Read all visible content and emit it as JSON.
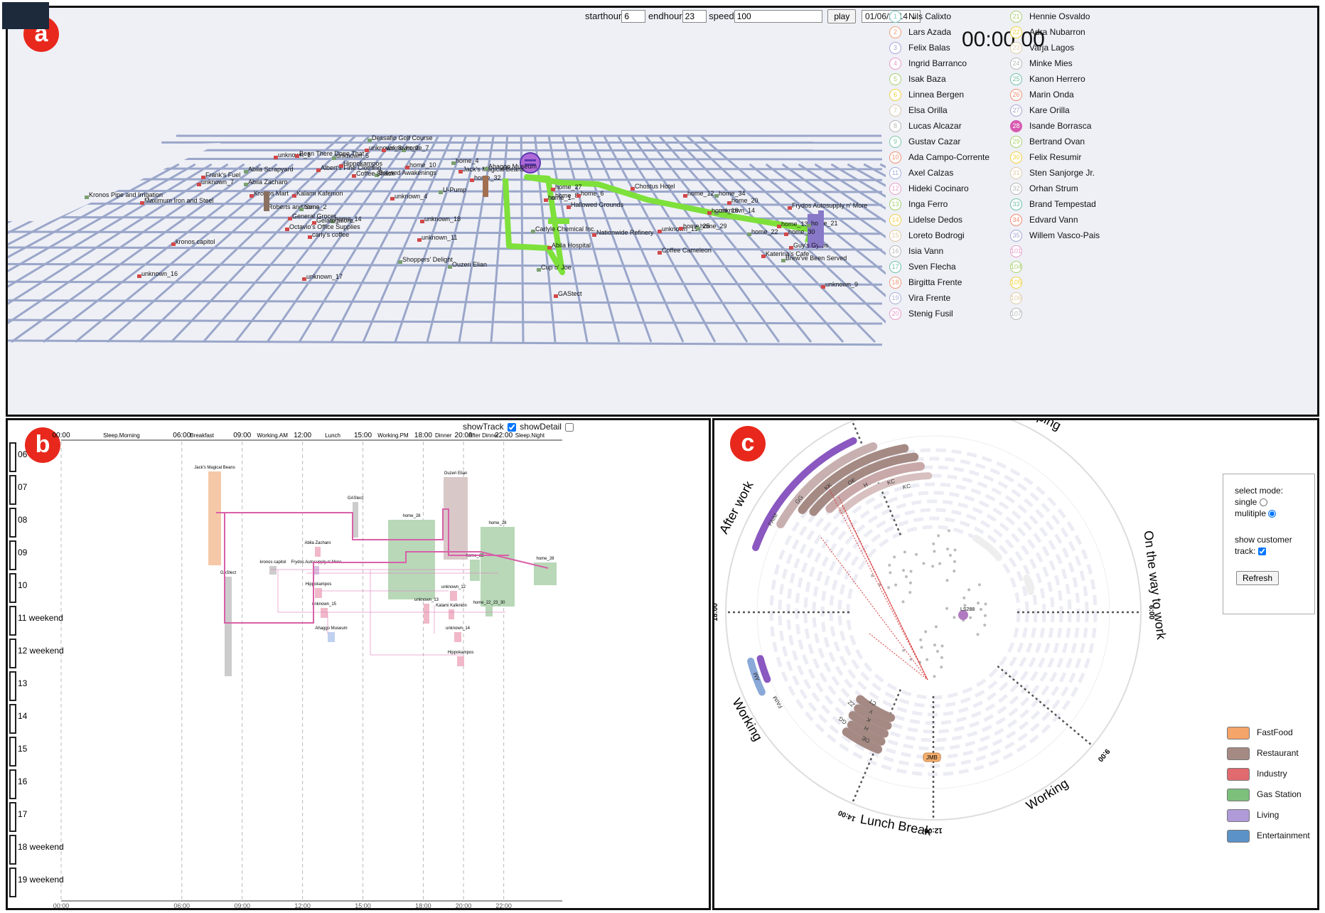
{
  "panel_a": {
    "badge": "a",
    "controls": {
      "starthour_label": "starthour",
      "starthour_value": "6",
      "endhour_label": "endhour",
      "endhour_value": "23",
      "speed_label": "speed",
      "speed_value": "100",
      "play_label": "play",
      "date_value": "01/06/2014"
    },
    "clock": "00:00:00",
    "map_labels": [
      "Dessafio Golf Course",
      "Chostus Hotel",
      "unknown_8",
      "home_7",
      "unknown_1",
      "Bean There Done That",
      "unknown_5",
      "unknown_2",
      "home_10",
      "home_4",
      "Jack's Magical Beans",
      "Frank's Fuel",
      "Abila Scrapyard",
      "Albert's Fine Clothing",
      "Hippokampos",
      "Brewed Awakenings",
      "Coffee Shack",
      "unknown_7",
      "Abila Zacharo",
      "Kronos Mart",
      "Kalami Kafenion",
      "Kronos Pipe and Irrigation",
      "Maximum Iron and Steel",
      "home_27",
      "home_8",
      "Hallowed Grounds",
      "unknown_4",
      "U-Pump",
      "home_32",
      "home_12",
      "home_34",
      "home_20",
      "Frydos Autosupply n' More",
      "Ouzeri Elian",
      "General Grocer",
      "Guy's Gyros",
      "home_14",
      "Octavio's Office Supplies",
      "unknown_18",
      "Carlyle Chemical Inc.",
      "Nationwide Refinery",
      "home_13",
      "home_22",
      "kronos capitol",
      "Katerina's Cafe",
      "Brew've Been Served",
      "Coffee Cameleon",
      "unknown_11",
      "Shoppers' Delight",
      "unknown_16",
      "unknown_17",
      "Cup o' Joe",
      "GAStect",
      "unknown_9",
      "Ahaggo Museum",
      "carly's coffee",
      "Roberts and Sons",
      "home_2",
      "Abila Hospital",
      "unknown_15",
      "unknown_14",
      "home_6",
      "home_25",
      "home_29",
      "home_30",
      "home_18",
      "home_21",
      "home_1",
      "Gelatogalore"
    ],
    "people": [
      {
        "id": "1",
        "name": "Nils Calixto",
        "color": "#7ec8c0"
      },
      {
        "id": "2",
        "name": "Lars Azada",
        "color": "#f0a07a"
      },
      {
        "id": "3",
        "name": "Felix Balas",
        "color": "#a0a8d8"
      },
      {
        "id": "4",
        "name": "Ingrid Barranco",
        "color": "#e89ac8"
      },
      {
        "id": "5",
        "name": "Isak Baza",
        "color": "#a8d070"
      },
      {
        "id": "6",
        "name": "Linnea Bergen",
        "color": "#f0d040"
      },
      {
        "id": "7",
        "name": "Elsa Orilla",
        "color": "#d8c8a8"
      },
      {
        "id": "8",
        "name": "Lucas Alcazar",
        "color": "#b8b8b8"
      },
      {
        "id": "9",
        "name": "Gustav Cazar",
        "color": "#7ec8a8"
      },
      {
        "id": "10",
        "name": "Ada Campo-Corrente",
        "color": "#f09070"
      },
      {
        "id": "11",
        "name": "Axel Calzas",
        "color": "#a0b0d8"
      },
      {
        "id": "12",
        "name": "Hideki Cocinaro",
        "color": "#e8a0c8"
      },
      {
        "id": "13",
        "name": "Inga Ferro",
        "color": "#a0d070"
      },
      {
        "id": "14",
        "name": "Lidelse Dedos",
        "color": "#f0d050"
      },
      {
        "id": "15",
        "name": "Loreto Bodrogi",
        "color": "#e0c8a0"
      },
      {
        "id": "16",
        "name": "Isia Vann",
        "color": "#b8b8b8"
      },
      {
        "id": "17",
        "name": "Sven Flecha",
        "color": "#70c0a8"
      },
      {
        "id": "18",
        "name": "Birgitta Frente",
        "color": "#f09878"
      },
      {
        "id": "19",
        "name": "Vira Frente",
        "color": "#a8b0d8"
      },
      {
        "id": "20",
        "name": "Stenig Fusil",
        "color": "#e898c8"
      },
      {
        "id": "21",
        "name": "Hennie Osvaldo",
        "color": "#a8d070"
      },
      {
        "id": "22",
        "name": "Adra Nubarron",
        "color": "#f0d040"
      },
      {
        "id": "23",
        "name": "Varja Lagos",
        "color": "#e0cca8"
      },
      {
        "id": "24",
        "name": "Minke Mies",
        "color": "#b8b8b8"
      },
      {
        "id": "25",
        "name": "Kanon Herrero",
        "color": "#70c0a8"
      },
      {
        "id": "26",
        "name": "Marin Onda",
        "color": "#f09070"
      },
      {
        "id": "27",
        "name": "Kare Orilla",
        "color": "#a0a8d0"
      },
      {
        "id": "28",
        "name": "Isande Borrasca",
        "color": "#d85ab0"
      },
      {
        "id": "29",
        "name": "Bertrand Ovan",
        "color": "#a8d070"
      },
      {
        "id": "30",
        "name": "Felix Resumir",
        "color": "#f0d040"
      },
      {
        "id": "31",
        "name": "Sten Sanjorge Jr.",
        "color": "#e0cca8"
      },
      {
        "id": "32",
        "name": "Orhan Strum",
        "color": "#b8b8b8"
      },
      {
        "id": "33",
        "name": "Brand Tempestad",
        "color": "#70c0a8"
      },
      {
        "id": "34",
        "name": "Edvard Vann",
        "color": "#f08870"
      },
      {
        "id": "35",
        "name": "Willem Vasco-Pais",
        "color": "#a0a8d0"
      },
      {
        "id": "101",
        "name": "",
        "color": "#e8a0c8"
      },
      {
        "id": "104",
        "name": "",
        "color": "#a8d070"
      },
      {
        "id": "105",
        "name": "",
        "color": "#f0d040"
      },
      {
        "id": "106",
        "name": "",
        "color": "#e0cca8"
      },
      {
        "id": "107",
        "name": "",
        "color": "#b8b8b8"
      }
    ]
  },
  "panel_b": {
    "badge": "b",
    "show_track_label": "showTrack",
    "show_track_checked": true,
    "show_detail_label": "showDetail",
    "show_detail_checked": false,
    "time_ticks": [
      "00:00",
      "06:00",
      "09:00",
      "12:00",
      "15:00",
      "18:00",
      "20:00",
      "22:00"
    ],
    "time_ticks_bottom": [
      "00:00",
      "06:00",
      "09:00",
      "12:00",
      "15:00",
      "18:00",
      "20:00",
      "22:00"
    ],
    "periods": [
      "Sleep.Morning",
      "Breakfast",
      "Working.AM",
      "Lunch",
      "Working.PM",
      "Dinner",
      "After Dinner",
      "Sleep.Night"
    ],
    "days": [
      "06",
      "07",
      "08",
      "09",
      "10",
      "11 weekend",
      "12 weekend",
      "13",
      "14",
      "15",
      "16",
      "17",
      "18 weekend",
      "19 weekend"
    ],
    "stay_labels": [
      "Jack's Magical Beans",
      "GAStect",
      "Ouzeri Elian",
      "home_28",
      "home_28",
      "GAStect",
      "Abila Zacharo",
      "kronos capitol",
      "Frydos Autosupply n' More",
      "home_28",
      "home_28",
      "Hippokampos",
      "unknown_13",
      "unknown_12",
      "home_22_23_30",
      "unknown_15",
      "Kalami Kafenion",
      "Ahaggo Museum",
      "unknown_14",
      "Hippokampos"
    ]
  },
  "panel_c": {
    "badge": "c",
    "ring_labels": [
      "Sleeping",
      "On the way to work",
      "Working",
      "Lunch Break",
      "Working",
      "After work"
    ],
    "hour_labels": [
      "22:00",
      "6:00",
      "9:00",
      "12:00",
      "14:00",
      "18:00"
    ],
    "arc_labels": [
      "FAIM",
      "GG",
      "KK",
      "OE",
      "H",
      "KC",
      "KC",
      "OE",
      "H",
      "K",
      "Y",
      "CT",
      "GG",
      "ZZ",
      "AM",
      "FAIM"
    ],
    "center_label": "LS288",
    "node_label": "JMB",
    "controls": {
      "select_mode_label": "select mode:",
      "single_label": "single",
      "multiple_label": "mulitiple",
      "mode_selected": "multiple",
      "show_track_label": "show customer track:",
      "show_track_checked": true,
      "refresh_label": "Refresh"
    },
    "categories": [
      {
        "name": "FastFood",
        "color": "#f5a46a"
      },
      {
        "name": "Restaurant",
        "color": "#a58a84"
      },
      {
        "name": "Industry",
        "color": "#e06a6e"
      },
      {
        "name": "Gas Station",
        "color": "#7cc07c"
      },
      {
        "name": "Living",
        "color": "#b09ad8"
      },
      {
        "name": "Entertainment",
        "color": "#5b93c8"
      }
    ]
  }
}
